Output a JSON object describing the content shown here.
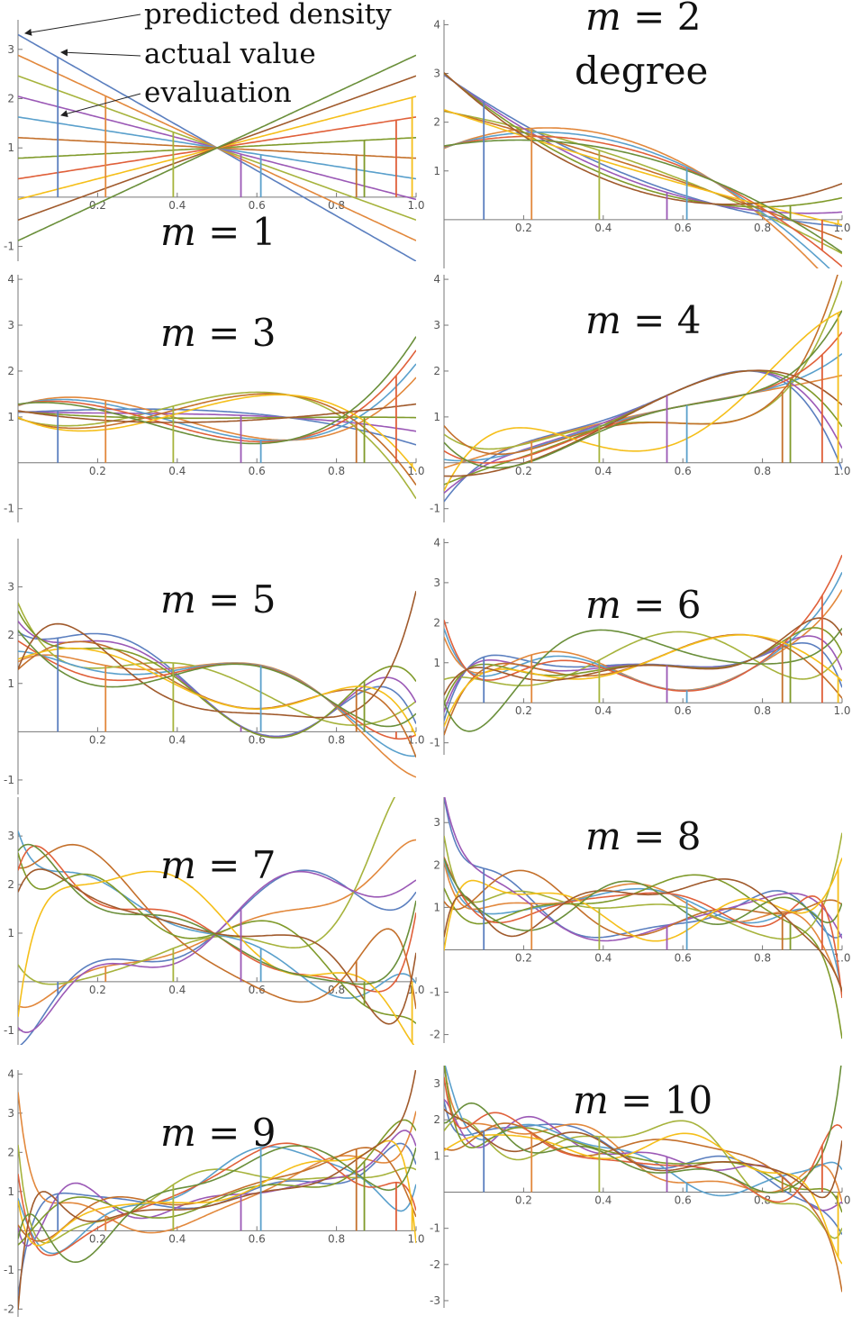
{
  "chart_data": {
    "type": "line",
    "series_colors": [
      "#5b7fbf",
      "#e2883c",
      "#a6b33c",
      "#9b59b6",
      "#5aa0cc",
      "#c4702b",
      "#7f9a2a",
      "#e0603a",
      "#f5bf1a",
      "#a05a2c",
      "#6a8f3a"
    ],
    "annotations": [
      {
        "text": "predicted density"
      },
      {
        "text": "actual value"
      },
      {
        "text": "evaluation"
      },
      {
        "text": "degree"
      }
    ],
    "panels": [
      {
        "label_prefix": "m",
        "label_value": "1",
        "xlim": [
          0,
          1
        ],
        "ylim": [
          -1.3,
          3.6
        ],
        "xticks": [
          0.2,
          0.4,
          0.6,
          0.8,
          1.0
        ],
        "xtick_labels": [
          "0.2",
          "0.4",
          "0.6",
          "0.8",
          "1.0"
        ],
        "yticks": [
          -1,
          1,
          2,
          3
        ],
        "ytick_labels": [
          "-1",
          "1",
          "2",
          "3"
        ],
        "markers": [
          0.1,
          0.22,
          0.39,
          0.56,
          0.61,
          0.85,
          0.87,
          0.95,
          0.99
        ]
      },
      {
        "label_prefix": "m",
        "label_value": "2",
        "xlim": [
          0,
          1
        ],
        "ylim": [
          -1.0,
          4.1
        ],
        "xticks": [
          0.2,
          0.4,
          0.6,
          0.8,
          1.0
        ],
        "xtick_labels": [
          "0.2",
          "0.4",
          "0.6",
          "0.8",
          "1.0"
        ],
        "yticks": [
          1,
          2,
          3,
          4
        ],
        "ytick_labels": [
          "1",
          "2",
          "3",
          "4"
        ],
        "markers": [
          0.1,
          0.22,
          0.39,
          0.56,
          0.61,
          0.85,
          0.87,
          0.95,
          0.99
        ]
      },
      {
        "label_prefix": "m",
        "label_value": "3",
        "xlim": [
          0,
          1
        ],
        "ylim": [
          -1.3,
          4.1
        ],
        "xticks": [
          0.2,
          0.4,
          0.6,
          0.8,
          1.0
        ],
        "xtick_labels": [
          "0.2",
          "0.4",
          "0.6",
          "0.8",
          "1.0"
        ],
        "yticks": [
          -1,
          1,
          2,
          3,
          4
        ],
        "ytick_labels": [
          "-1",
          "1",
          "2",
          "3",
          "4"
        ],
        "markers": [
          0.1,
          0.22,
          0.39,
          0.56,
          0.61,
          0.85,
          0.87,
          0.95,
          0.99
        ]
      },
      {
        "label_prefix": "m",
        "label_value": "4",
        "xlim": [
          0,
          1
        ],
        "ylim": [
          -1.3,
          4.1
        ],
        "xticks": [
          0.2,
          0.4,
          0.6,
          0.8,
          1.0
        ],
        "xtick_labels": [
          "0.2",
          "0.4",
          "0.6",
          "0.8",
          "1.0"
        ],
        "yticks": [
          -1,
          1,
          2,
          3,
          4
        ],
        "ytick_labels": [
          "-1",
          "1",
          "2",
          "3",
          "4"
        ],
        "markers": [
          0.1,
          0.22,
          0.39,
          0.56,
          0.61,
          0.85,
          0.87,
          0.95,
          0.99
        ]
      },
      {
        "label_prefix": "m",
        "label_value": "5",
        "xlim": [
          0,
          1
        ],
        "ylim": [
          -1.3,
          4.0
        ],
        "xticks": [
          0.2,
          0.4,
          0.6,
          0.8,
          1.0
        ],
        "xtick_labels": [
          "0.2",
          "0.4",
          "0.6",
          "0.8",
          "1.0"
        ],
        "yticks": [
          -1,
          1,
          2,
          3
        ],
        "ytick_labels": [
          "-1",
          "1",
          "2",
          "3"
        ],
        "markers": [
          0.1,
          0.22,
          0.39,
          0.56,
          0.61,
          0.85,
          0.87,
          0.95,
          0.99
        ]
      },
      {
        "label_prefix": "m",
        "label_value": "6",
        "xlim": [
          0,
          1
        ],
        "ylim": [
          -1.3,
          4.1
        ],
        "xticks": [
          0.2,
          0.4,
          0.6,
          0.8,
          1.0
        ],
        "xtick_labels": [
          "0.2",
          "0.4",
          "0.6",
          "0.8",
          "1.0"
        ],
        "yticks": [
          -1,
          1,
          2,
          3,
          4
        ],
        "ytick_labels": [
          "-1",
          "1",
          "2",
          "3",
          "4"
        ],
        "markers": [
          0.1,
          0.22,
          0.39,
          0.56,
          0.61,
          0.85,
          0.87,
          0.95,
          0.99
        ]
      },
      {
        "label_prefix": "m",
        "label_value": "7",
        "xlim": [
          0,
          1
        ],
        "ylim": [
          -1.3,
          3.8
        ],
        "xticks": [
          0.2,
          0.4,
          0.6,
          0.8,
          1.0
        ],
        "xtick_labels": [
          "0.2",
          "0.4",
          "0.6",
          "0.8",
          "1.0"
        ],
        "yticks": [
          -1,
          1,
          2,
          3
        ],
        "ytick_labels": [
          "-1",
          "1",
          "2",
          "3"
        ],
        "markers": [
          0.1,
          0.22,
          0.39,
          0.56,
          0.61,
          0.85,
          0.87,
          0.95,
          0.99
        ]
      },
      {
        "label_prefix": "m",
        "label_value": "8",
        "xlim": [
          0,
          1
        ],
        "ylim": [
          -2.2,
          3.6
        ],
        "xticks": [
          0.2,
          0.4,
          0.6,
          0.8,
          1.0
        ],
        "xtick_labels": [
          "0.2",
          "0.4",
          "0.6",
          "0.8",
          "1.0"
        ],
        "yticks": [
          -2,
          -1,
          1,
          2,
          3
        ],
        "ytick_labels": [
          "-2",
          "-1",
          "1",
          "2",
          "3"
        ],
        "markers": [
          0.1,
          0.22,
          0.39,
          0.56,
          0.61,
          0.85,
          0.87,
          0.95,
          0.99
        ]
      },
      {
        "label_prefix": "m",
        "label_value": "9",
        "xlim": [
          0,
          1
        ],
        "ylim": [
          -2.2,
          4.1
        ],
        "xticks": [
          0.2,
          0.4,
          0.6,
          0.8,
          1.0
        ],
        "xtick_labels": [
          "0.2",
          "0.4",
          "0.6",
          "0.8",
          "1.0"
        ],
        "yticks": [
          -2,
          -1,
          1,
          2,
          3,
          4
        ],
        "ytick_labels": [
          "-2",
          "-1",
          "1",
          "2",
          "3",
          "4"
        ],
        "markers": [
          0.1,
          0.22,
          0.39,
          0.56,
          0.61,
          0.85,
          0.87,
          0.95,
          0.99
        ]
      },
      {
        "label_prefix": "m",
        "label_value": "10",
        "xlim": [
          0,
          1
        ],
        "ylim": [
          -3.2,
          3.5
        ],
        "xticks": [
          0.2,
          0.4,
          0.6,
          0.8,
          1.0
        ],
        "xtick_labels": [
          "0.2",
          "0.4",
          "0.6",
          "0.8",
          "1.0"
        ],
        "yticks": [
          -3,
          -2,
          -1,
          1,
          2,
          3
        ],
        "ytick_labels": [
          "-3",
          "-2",
          "-1",
          "1",
          "2",
          "3"
        ],
        "markers": [
          0.1,
          0.22,
          0.39,
          0.56,
          0.61,
          0.85,
          0.87,
          0.95,
          0.99
        ]
      }
    ]
  }
}
